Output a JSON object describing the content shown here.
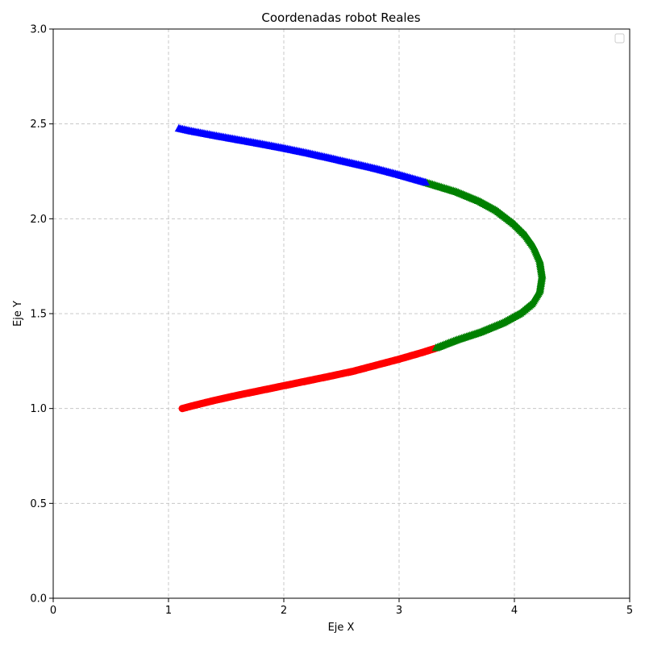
{
  "chart_data": {
    "type": "scatter",
    "title": "Coordenadas robot Reales",
    "xlabel": "Eje X",
    "ylabel": "Eje Y",
    "xlim": [
      0,
      5
    ],
    "ylim": [
      0,
      3
    ],
    "xticks": [
      "0",
      "1",
      "2",
      "3",
      "4",
      "5"
    ],
    "yticks": [
      "0.0",
      "0.5",
      "1.0",
      "1.5",
      "2.0",
      "2.5",
      "3.0"
    ],
    "grid": true,
    "legend": "top-right (empty)",
    "series": [
      {
        "color": "#ff0000",
        "marker": "circle",
        "points": [
          [
            1.12,
            1.0
          ],
          [
            1.2,
            1.013
          ],
          [
            1.4,
            1.043
          ],
          [
            1.6,
            1.07
          ],
          [
            1.8,
            1.095
          ],
          [
            2.0,
            1.12
          ],
          [
            2.2,
            1.145
          ],
          [
            2.4,
            1.17
          ],
          [
            2.6,
            1.196
          ],
          [
            2.8,
            1.228
          ],
          [
            3.0,
            1.26
          ],
          [
            3.2,
            1.295
          ],
          [
            3.32,
            1.318
          ]
        ]
      },
      {
        "color": "#008000",
        "marker": "triangle",
        "points": [
          [
            3.32,
            1.318
          ],
          [
            3.5,
            1.36
          ],
          [
            3.7,
            1.4
          ],
          [
            3.9,
            1.45
          ],
          [
            4.05,
            1.5
          ],
          [
            4.15,
            1.55
          ],
          [
            4.22,
            1.62
          ],
          [
            4.24,
            1.7
          ],
          [
            4.22,
            1.78
          ],
          [
            4.17,
            1.85
          ],
          [
            4.1,
            1.91
          ],
          [
            4.0,
            1.97
          ],
          [
            3.85,
            2.04
          ],
          [
            3.7,
            2.09
          ],
          [
            3.5,
            2.14
          ],
          [
            3.23,
            2.19
          ]
        ]
      },
      {
        "color": "#0000ff",
        "marker": "triangle",
        "points": [
          [
            3.23,
            2.19
          ],
          [
            3.0,
            2.23
          ],
          [
            2.8,
            2.262
          ],
          [
            2.6,
            2.29
          ],
          [
            2.4,
            2.318
          ],
          [
            2.2,
            2.345
          ],
          [
            2.0,
            2.37
          ],
          [
            1.8,
            2.393
          ],
          [
            1.6,
            2.415
          ],
          [
            1.4,
            2.437
          ],
          [
            1.2,
            2.46
          ],
          [
            1.09,
            2.475
          ]
        ]
      }
    ]
  }
}
